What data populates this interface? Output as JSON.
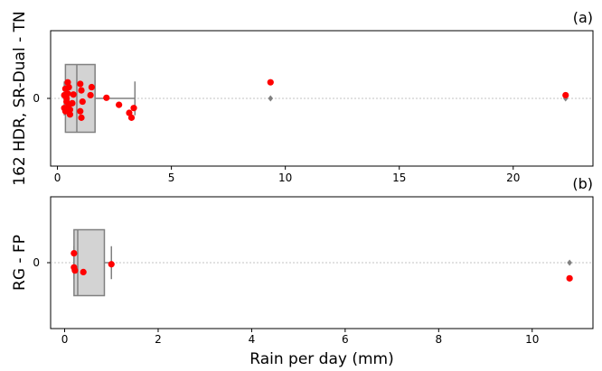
{
  "chart_data": [
    {
      "type": "box+strip",
      "panel_label": "(a)",
      "ylabel": "162 HDR, SR-Dual - TN",
      "y_category": "0",
      "xlim": [
        -0.3,
        23.5
      ],
      "xticks": [
        0,
        5,
        10,
        15,
        20
      ],
      "box": {
        "whislo": 0.3,
        "q1": 0.35,
        "median": 0.85,
        "q3": 1.65,
        "whishi": 3.4,
        "outliers": [
          9.35,
          22.3
        ]
      },
      "points": [
        {
          "x": 0.3,
          "y": 0.1
        },
        {
          "x": 0.35,
          "y": 0.3
        },
        {
          "x": 0.4,
          "y": -0.1
        },
        {
          "x": 0.3,
          "y": -0.3
        },
        {
          "x": 0.45,
          "y": 0.15
        },
        {
          "x": 0.5,
          "y": -0.2
        },
        {
          "x": 0.35,
          "y": -0.4
        },
        {
          "x": 0.45,
          "y": 0.5
        },
        {
          "x": 0.4,
          "y": 0.0
        },
        {
          "x": 0.55,
          "y": -0.5
        },
        {
          "x": 0.5,
          "y": 0.35
        },
        {
          "x": 0.65,
          "y": -0.15
        },
        {
          "x": 0.7,
          "y": 0.12
        },
        {
          "x": 0.55,
          "y": -0.35
        },
        {
          "x": 1.0,
          "y": 0.45
        },
        {
          "x": 1.05,
          "y": 0.25
        },
        {
          "x": 1.0,
          "y": -0.4
        },
        {
          "x": 1.05,
          "y": -0.6
        },
        {
          "x": 1.1,
          "y": -0.1
        },
        {
          "x": 1.5,
          "y": 0.35
        },
        {
          "x": 1.45,
          "y": 0.1
        },
        {
          "x": 2.15,
          "y": 0.02
        },
        {
          "x": 2.7,
          "y": -0.2
        },
        {
          "x": 3.15,
          "y": -0.45
        },
        {
          "x": 3.25,
          "y": -0.6
        },
        {
          "x": 3.35,
          "y": -0.3
        },
        {
          "x": 9.35,
          "y": 0.5
        },
        {
          "x": 22.3,
          "y": 0.1
        }
      ]
    },
    {
      "type": "box+strip",
      "panel_label": "(b)",
      "ylabel": "RG - FP",
      "y_category": "0",
      "xlim": [
        -0.3,
        11.3
      ],
      "xticks": [
        0,
        2,
        4,
        6,
        8,
        10
      ],
      "box": {
        "whislo": 0.2,
        "q1": 0.2,
        "median": 0.28,
        "q3": 0.85,
        "whishi": 1.0,
        "outliers": [
          10.8
        ]
      },
      "points": [
        {
          "x": 0.2,
          "y": 0.3
        },
        {
          "x": 0.2,
          "y": -0.15
        },
        {
          "x": 0.22,
          "y": -0.25
        },
        {
          "x": 0.4,
          "y": -0.3
        },
        {
          "x": 1.0,
          "y": -0.05
        },
        {
          "x": 10.8,
          "y": -0.5
        }
      ]
    }
  ],
  "xlabel": "Rain per day (mm)",
  "colors": {
    "box_fill": "#d3d3d3",
    "box_edge": "#808080",
    "points": "#ff0000",
    "outlier": "#808080",
    "gridline": "#b0b0b0"
  }
}
